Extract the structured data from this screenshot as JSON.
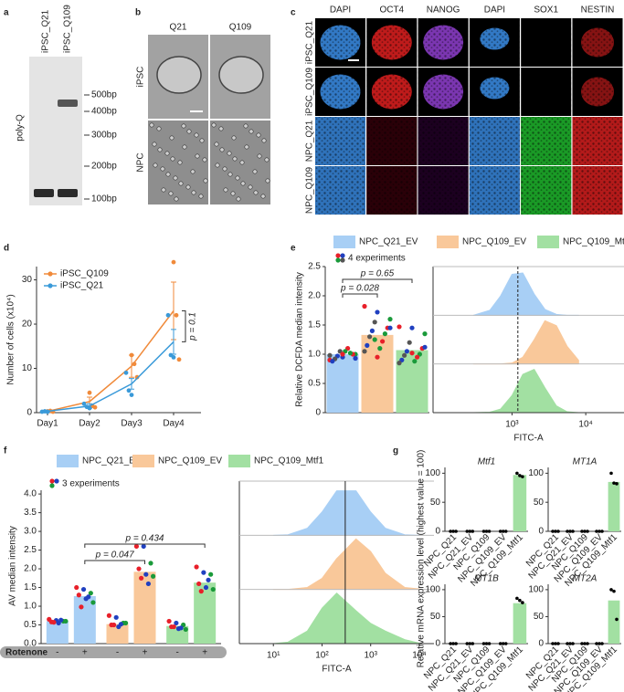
{
  "panel_labels": [
    "a",
    "b",
    "c",
    "d",
    "e",
    "f",
    "g"
  ],
  "gel": {
    "lanes": [
      "iPSC_Q21",
      "iPSC_Q109"
    ],
    "ylabel": "poly-Q",
    "markers": [
      "500bp",
      "400bp",
      "300bp",
      "200bp",
      "100bp"
    ]
  },
  "phase": {
    "columns": [
      "Q21",
      "Q109"
    ],
    "rows": [
      "iPSC",
      "NPC"
    ]
  },
  "immunofluorescence": {
    "columns": [
      "DAPI",
      "OCT4",
      "NANOG",
      "DAPI",
      "SOX1",
      "NESTIN"
    ],
    "rows": [
      "iPSC_Q21",
      "iPSC_Q109",
      "NPC_Q21",
      "NPC_Q109"
    ]
  },
  "chart_data": [
    {
      "type": "line",
      "ylabel": "Number of cells (x10⁴)",
      "categories": [
        "Day1",
        "Day2",
        "Day3",
        "Day4"
      ],
      "ylim": [
        0,
        33
      ],
      "yticks": [
        0,
        10,
        20,
        30
      ],
      "legend": "upper left",
      "series": [
        {
          "name": "iPSC_Q109",
          "color": "#f08a3a",
          "values": [
            0.3,
            2.5,
            10.5,
            23
          ],
          "errors": [
            0.2,
            1,
            2.5,
            6.5
          ],
          "points": [
            [
              0.3,
              0.4,
              0.2
            ],
            [
              4.5,
              1.5,
              1.2
            ],
            [
              13,
              11,
              8
            ],
            [
              34,
              22,
              12
            ]
          ]
        },
        {
          "name": "iPSC_Q21",
          "color": "#3a9ad9",
          "values": [
            0.3,
            1.5,
            6.5,
            16
          ],
          "errors": [
            0.1,
            0.5,
            1.2,
            2.8
          ],
          "points": [
            [
              0.2,
              0.3,
              0.2
            ],
            [
              2,
              1.3,
              1
            ],
            [
              9,
              5,
              4
            ],
            [
              22,
              13,
              12.5
            ]
          ]
        }
      ],
      "annotation": "p = 0.1"
    },
    {
      "type": "bar",
      "ylabel": "Relative DCFDA median intensity",
      "categories": [
        "NPC_Q21_EV",
        "NPC_Q109_EV",
        "NPC_Q109_Mtf1"
      ],
      "colors": [
        "#a8cff5",
        "#f9c89a",
        "#a2e0a2"
      ],
      "values": [
        1.0,
        1.33,
        1.07
      ],
      "ylim": [
        0,
        2.5
      ],
      "yticks": [
        0,
        0.5,
        {
          "value": 1,
          "label": "1.0"
        },
        1.5,
        {
          "value": 2,
          "label": "2.0"
        },
        2.5
      ],
      "experiments_label": "4 experiments",
      "experiment_colors": [
        "#e8202a",
        "#2040c0",
        "#1a9a3a",
        "#555555"
      ],
      "points": [
        [
          0.9,
          0.95,
          1.0,
          1.05,
          1.0,
          0.97,
          1.02,
          0.92,
          1.1,
          0.88,
          1.05,
          0.98,
          1.0,
          0.93
        ],
        [
          1.82,
          1.72,
          1.6,
          1.55,
          1.45,
          1.4,
          1.35,
          1.3,
          1.22,
          1.15,
          1.1,
          1.05,
          0.95,
          1.45,
          1.25
        ],
        [
          1.47,
          1.45,
          1.35,
          1.2,
          1.1,
          1.05,
          1.0,
          0.98,
          0.95,
          0.9,
          0.88,
          0.85,
          1.02,
          1.12
        ]
      ],
      "annotations": [
        "p = 0.028",
        "p = 0.65"
      ]
    },
    {
      "type": "density",
      "xlabel": "FITC-A",
      "log_x": true,
      "xlim": [
        85,
        33000
      ],
      "xticks": [
        {
          "value": 1000,
          "label": "10³"
        },
        {
          "value": 10000,
          "label": "10⁴"
        }
      ],
      "x": [
        300,
        500,
        700,
        1000,
        1400,
        2000,
        2800,
        4000,
        5600,
        8000
      ],
      "vline": 1200,
      "vline_style": "dashed",
      "series": [
        {
          "color": "#a8cff5",
          "values": [
            0,
            0.11,
            0.43,
            0.91,
            0.94,
            0.47,
            0.13,
            0.02,
            0,
            0
          ]
        },
        {
          "color": "#f9c89a",
          "values": [
            0,
            0,
            0,
            0.02,
            0.15,
            0.54,
            0.96,
            0.85,
            0.39,
            0.08
          ]
        },
        {
          "color": "#a2e0a2",
          "values": [
            0,
            0.01,
            0.08,
            0.38,
            0.85,
            0.96,
            0.55,
            0.15,
            0.02,
            0
          ]
        }
      ]
    },
    {
      "type": "grouped_bar",
      "ylabel": "AV median intensity",
      "categories": [
        "NPC_Q21_EV",
        "NPC_Q109_EV",
        "NPC_Q109_Mtf1"
      ],
      "colors": [
        "#a8cff5",
        "#f9c89a",
        "#a2e0a2"
      ],
      "conditions_label": "Rotenone",
      "conditions": [
        "-",
        "+"
      ],
      "values": [
        [
          0.6,
          1.27
        ],
        [
          0.52,
          1.92
        ],
        [
          0.47,
          1.63
        ]
      ],
      "ylim": [
        0,
        4.1
      ],
      "yticks": [
        {
          "value": 0,
          "label": "0.0"
        },
        0.5,
        {
          "value": 1,
          "label": "1.0"
        },
        1.5,
        {
          "value": 2,
          "label": "2.0"
        },
        2.5,
        {
          "value": 3,
          "label": "3.0"
        },
        3.5,
        {
          "value": 4,
          "label": "4.0"
        }
      ],
      "experiments_label": "3 experiments",
      "experiment_colors": [
        "#e8202a",
        "#2040c0",
        "#1a9a3a"
      ],
      "points": [
        [
          [
            0.65,
            0.62,
            0.6,
            0.58,
            0.55,
            0.6,
            0.57,
            0.63
          ],
          [
            1.5,
            1.45,
            1.35,
            1.3,
            1.2,
            1.1,
            0.98,
            1.25
          ]
        ],
        [
          [
            0.75,
            0.7,
            0.55,
            0.5,
            0.45,
            0.55,
            0.5,
            0.52
          ],
          [
            2.6,
            2.6,
            2.15,
            2.0,
            1.85,
            1.8,
            1.75,
            1.6
          ]
        ],
        [
          [
            0.6,
            0.55,
            0.5,
            0.45,
            0.4,
            0.38,
            0.45,
            0.42
          ],
          [
            2.05,
            1.9,
            1.85,
            1.6,
            1.5,
            1.45,
            1.4,
            1.7
          ]
        ]
      ],
      "annotations": [
        "p = 0.047",
        "p = 0.434"
      ]
    },
    {
      "type": "density",
      "xlabel": "FITC-A",
      "log_x": true,
      "xlim": [
        2,
        20000
      ],
      "xticks": [
        {
          "value": 10,
          "label": "10¹"
        },
        {
          "value": 100,
          "label": "10²"
        },
        {
          "value": 1000,
          "label": "10³"
        },
        {
          "value": 10000,
          "label": "10⁴"
        }
      ],
      "x": [
        10,
        20,
        50,
        100,
        200,
        500,
        1000,
        2000,
        5000,
        10000
      ],
      "vline": 300,
      "vline_style": "solid",
      "series": [
        {
          "color": "#a8cff5",
          "values": [
            0,
            0.01,
            0.14,
            0.46,
            0.88,
            0.88,
            0.46,
            0.14,
            0.01,
            0
          ]
        },
        {
          "color": "#f9c89a",
          "values": [
            0,
            0,
            0.04,
            0.22,
            0.61,
            1,
            0.75,
            0.32,
            0.04,
            0.01
          ]
        },
        {
          "color": "#a2e0a2",
          "values": [
            0,
            0.03,
            0.25,
            0.7,
            1,
            0.65,
            0.4,
            0.25,
            0.08,
            0.01
          ]
        }
      ]
    },
    {
      "type": "bar",
      "title": "Mtf1",
      "ylabel": "Relative mRNA expression level (highest value = 100)",
      "categories": [
        "NPC_Q21",
        "NPC_Q21_EV",
        "NPC_Q109",
        "NPC_Q109_EV",
        "NPC_Q109_Mtf1"
      ],
      "color": "#a2e0a2",
      "point_color": "#000000",
      "values": [
        0,
        0,
        0,
        0,
        97
      ],
      "points": [
        [
          0,
          0,
          0
        ],
        [
          0,
          0,
          0
        ],
        [
          0,
          0,
          0
        ],
        [
          0,
          0,
          0
        ],
        [
          100,
          96,
          94
        ]
      ],
      "ylim": [
        0,
        110
      ],
      "yticks": [
        0,
        50,
        100
      ]
    },
    {
      "type": "bar",
      "title": "MT1A",
      "categories": [
        "NPC_Q21",
        "NPC_Q21_EV",
        "NPC_Q109",
        "NPC_Q109_EV",
        "NPC_Q109_Mtf1"
      ],
      "color": "#a2e0a2",
      "point_color": "#000000",
      "values": [
        0,
        0,
        0,
        0,
        85
      ],
      "points": [
        [
          0,
          0,
          0
        ],
        [
          0,
          0,
          0
        ],
        [
          0,
          0,
          0
        ],
        [
          0,
          0,
          0
        ],
        [
          100,
          83,
          82
        ]
      ],
      "ylim": [
        0,
        110
      ],
      "yticks": [
        0,
        50,
        100
      ]
    },
    {
      "type": "bar",
      "title": "MT1B",
      "categories": [
        "NPC_Q21",
        "NPC_Q21_EV",
        "NPC_Q109",
        "NPC_Q109_EV",
        "NPC_Q109_Mtf1"
      ],
      "color": "#a2e0a2",
      "point_color": "#000000",
      "values": [
        0,
        0,
        0,
        0,
        75
      ],
      "points": [
        [
          0,
          0,
          0
        ],
        [
          0,
          0,
          0
        ],
        [
          0,
          0,
          0
        ],
        [
          0,
          0,
          0
        ],
        [
          84,
          80,
          76
        ]
      ],
      "ylim": [
        0,
        110
      ],
      "yticks": [
        0,
        50,
        100
      ]
    },
    {
      "type": "bar",
      "title": "MT2A",
      "categories": [
        "NPC_Q21",
        "NPC_Q21_EV",
        "NPC_Q109",
        "NPC_Q109_EV",
        "NPC_Q109_Mtf1"
      ],
      "color": "#a2e0a2",
      "point_color": "#000000",
      "values": [
        0,
        0,
        0,
        0,
        80
      ],
      "points": [
        [
          0,
          0,
          0
        ],
        [
          0,
          0,
          0
        ],
        [
          0,
          0,
          0
        ],
        [
          0,
          0,
          0
        ],
        [
          100,
          97,
          45
        ]
      ],
      "ylim": [
        0,
        110
      ],
      "yticks": [
        0,
        50,
        100
      ]
    }
  ]
}
